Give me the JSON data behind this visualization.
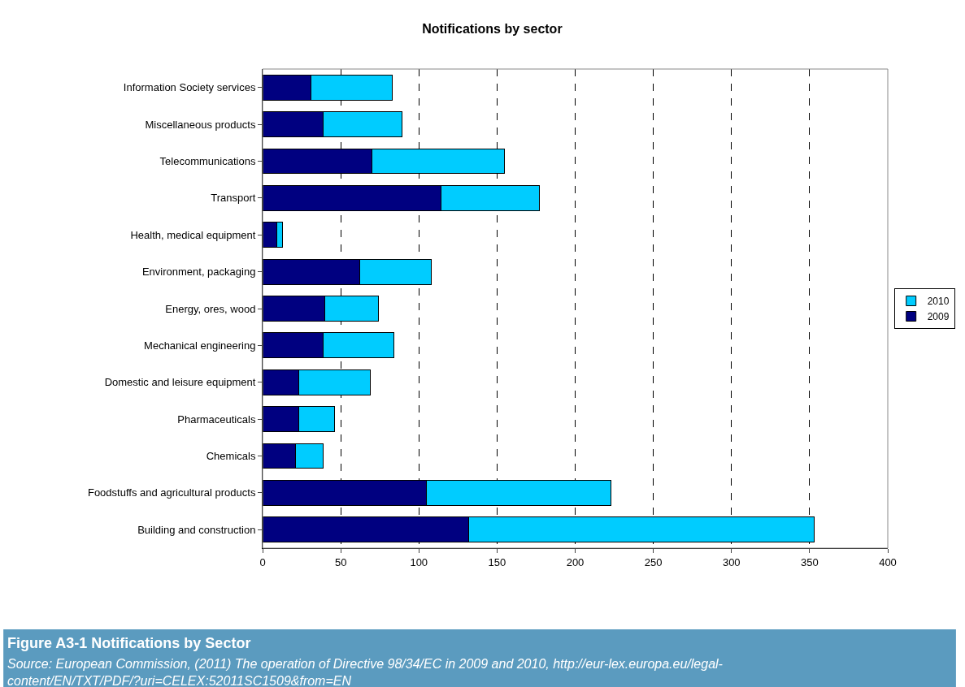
{
  "chart_data": {
    "type": "bar",
    "orientation": "horizontal",
    "stacked": true,
    "title": "Notifications by sector",
    "categories": [
      "Information Society services",
      "Miscellaneous products",
      "Telecommunications",
      "Transport",
      "Health, medical equipment",
      "Environment, packaging",
      "Energy, ores, wood",
      "Mechanical engineering",
      "Domestic and leisure equipment",
      "Pharmaceuticals",
      "Chemicals",
      "Foodstuffs and agricultural products",
      "Building and construction"
    ],
    "series": [
      {
        "name": "2009",
        "color": "#000080",
        "values": [
          31,
          39,
          70,
          114,
          9,
          62,
          40,
          39,
          23,
          23,
          21,
          105,
          132
        ]
      },
      {
        "name": "2010",
        "color": "#00ccff",
        "values": [
          52,
          50,
          85,
          63,
          4,
          46,
          34,
          45,
          46,
          23,
          18,
          118,
          221
        ]
      }
    ],
    "xlim": [
      0,
      400
    ],
    "xticks": [
      0,
      50,
      100,
      150,
      200,
      250,
      300,
      350,
      400
    ],
    "grid": "x",
    "legend": "right",
    "annotations": [
      "Figure A3-1 Notifications by Sector",
      "Source: European Commission, (2011) The operation of Directive 98/34/EC in 2009 and 2010, http://eur-lex.europa.eu/legal-content/EN/TXT/PDF/?uri=CELEX:52011SC1509&from=EN"
    ]
  }
}
